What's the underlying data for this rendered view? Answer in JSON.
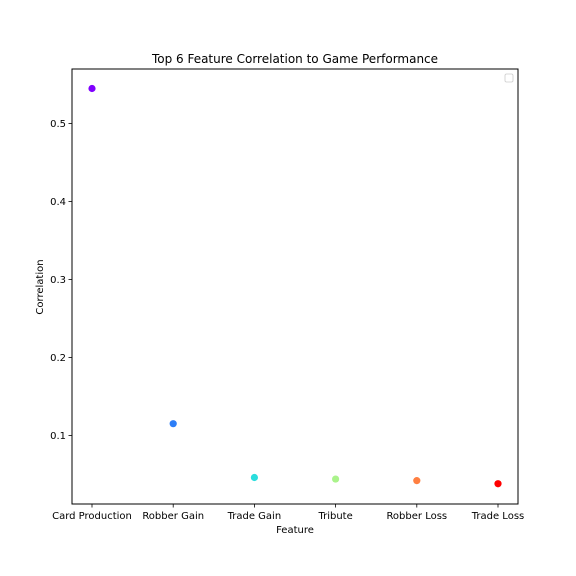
{
  "chart_data": {
    "type": "scatter",
    "title": "Top 6 Feature Correlation to Game Performance",
    "xlabel": "Feature",
    "ylabel": "Correlation",
    "categories": [
      "Card Production",
      "Robber Gain",
      "Trade Gain",
      "Tribute",
      "Robber Loss",
      "Trade Loss"
    ],
    "values": [
      0.545,
      0.115,
      0.046,
      0.044,
      0.042,
      0.038
    ],
    "colors": [
      "#8000ff",
      "#2c7ef7",
      "#2adddd",
      "#aaf38b",
      "#ff7f41",
      "#ff0000"
    ],
    "ylim": [
      0.012,
      0.57
    ],
    "yticks": [
      0.1,
      0.2,
      0.3,
      0.4,
      0.5
    ],
    "yticklabels": [
      "0.1",
      "0.2",
      "0.3",
      "0.4",
      "0.5"
    ],
    "grid": false,
    "legend": {
      "placement": "upper right",
      "entries": []
    }
  }
}
